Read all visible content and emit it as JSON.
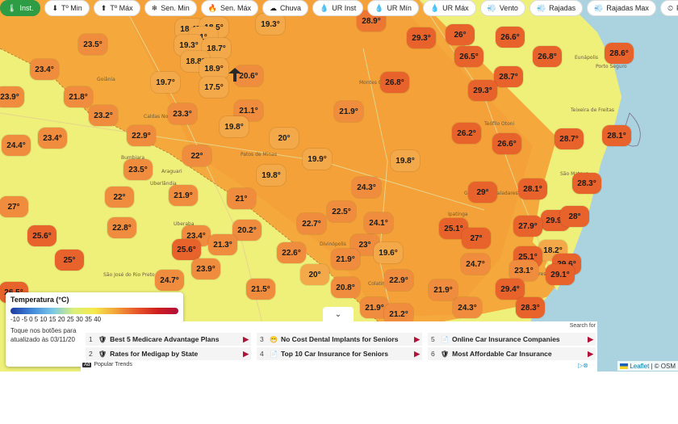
{
  "toolbar": [
    {
      "icon": "thermometer-icon",
      "glyph": "🌡",
      "label": "Inst.",
      "active": true
    },
    {
      "icon": "arrow-down-icon",
      "glyph": "⬇",
      "label": "Tº Min"
    },
    {
      "icon": "arrow-up-icon",
      "glyph": "⬆",
      "label": "Tº Máx"
    },
    {
      "icon": "snowflake-icon",
      "glyph": "❄",
      "label": "Sen. Min"
    },
    {
      "icon": "fire-icon",
      "glyph": "🔥",
      "label": "Sen. Máx"
    },
    {
      "icon": "cloud-rain-icon",
      "glyph": "☁",
      "label": "Chuva"
    },
    {
      "icon": "droplet-icon",
      "glyph": "💧",
      "label": "UR Inst"
    },
    {
      "icon": "droplet-icon",
      "glyph": "💧",
      "label": "UR Mín"
    },
    {
      "icon": "droplet-icon",
      "glyph": "💧",
      "label": "UR Máx"
    },
    {
      "icon": "wind-icon",
      "glyph": "💨",
      "label": "Vento"
    },
    {
      "icon": "wind-gust-icon",
      "glyph": "💨",
      "label": "Rajadas"
    },
    {
      "icon": "wind-gust-icon",
      "glyph": "💨",
      "label": "Rajadas Max"
    },
    {
      "icon": "gauge-icon",
      "glyph": "⏲",
      "label": "Pressão"
    }
  ],
  "markers": [
    {
      "t": "28.9°",
      "c": "orange"
    },
    {
      "t": "19.3°",
      "c": "mild"
    },
    {
      "t": "18.4°",
      "c": "mild"
    },
    {
      "t": "18.5°",
      "c": "mild"
    },
    {
      "t": "1°",
      "c": "mild"
    },
    {
      "t": "19.3°",
      "c": "mild"
    },
    {
      "t": "18.7°",
      "c": "mild"
    },
    {
      "t": "18.8°",
      "c": "mild"
    },
    {
      "t": "18.9°",
      "c": "mild"
    },
    {
      "t": "17.5°",
      "c": "mild"
    },
    {
      "t": "23.5°",
      "c": "warm"
    },
    {
      "t": "23.4°",
      "c": "warm"
    },
    {
      "t": "23.9°",
      "c": "warm"
    },
    {
      "t": "21.8°",
      "c": "warm"
    },
    {
      "t": "19.7°",
      "c": "mild"
    },
    {
      "t": "20.6°",
      "c": "warm"
    },
    {
      "t": "23.2°",
      "c": "warm"
    },
    {
      "t": "23.3°",
      "c": "warm"
    },
    {
      "t": "21.1°",
      "c": "warm"
    },
    {
      "t": "19.8°",
      "c": "mild"
    },
    {
      "t": "24.4°",
      "c": "warm"
    },
    {
      "t": "23.4°",
      "c": "warm"
    },
    {
      "t": "22.9°",
      "c": "warm"
    },
    {
      "t": "20°",
      "c": "mild"
    },
    {
      "t": "21.9°",
      "c": "warm"
    },
    {
      "t": "29.3°",
      "c": "hot"
    },
    {
      "t": "26°",
      "c": "hot"
    },
    {
      "t": "26.6°",
      "c": "hot"
    },
    {
      "t": "26.5°",
      "c": "hot"
    },
    {
      "t": "26.8°",
      "c": "hot"
    },
    {
      "t": "28.6°",
      "c": "hot"
    },
    {
      "t": "28.7°",
      "c": "hot"
    },
    {
      "t": "26.8°",
      "c": "hot"
    },
    {
      "t": "29.3°",
      "c": "hot"
    },
    {
      "t": "26.2°",
      "c": "hot"
    },
    {
      "t": "26.6°",
      "c": "hot"
    },
    {
      "t": "28.7°",
      "c": "hot"
    },
    {
      "t": "28.1°",
      "c": "hot"
    },
    {
      "t": "23.5°",
      "c": "warm"
    },
    {
      "t": "22°",
      "c": "warm"
    },
    {
      "t": "19.8°",
      "c": "mild"
    },
    {
      "t": "19.9°",
      "c": "mild"
    },
    {
      "t": "19.8°",
      "c": "mild"
    },
    {
      "t": "24.3°",
      "c": "warm"
    },
    {
      "t": "28.1°",
      "c": "hot"
    },
    {
      "t": "28.3°",
      "c": "hot"
    },
    {
      "t": "27°",
      "c": "warm"
    },
    {
      "t": "22°",
      "c": "warm"
    },
    {
      "t": "21.9°",
      "c": "warm"
    },
    {
      "t": "21°",
      "c": "warm"
    },
    {
      "t": "29°",
      "c": "hot"
    },
    {
      "t": "22.5°",
      "c": "warm"
    },
    {
      "t": "22.7°",
      "c": "warm"
    },
    {
      "t": "24.1°",
      "c": "warm"
    },
    {
      "t": "29.9°",
      "c": "hot"
    },
    {
      "t": "28°",
      "c": "hot"
    },
    {
      "t": "27.9°",
      "c": "hot"
    },
    {
      "t": "22.8°",
      "c": "warm"
    },
    {
      "t": "25.6°",
      "c": "hot"
    },
    {
      "t": "23.4°",
      "c": "warm"
    },
    {
      "t": "20.2°",
      "c": "warm"
    },
    {
      "t": "21.3°",
      "c": "warm"
    },
    {
      "t": "25.1°",
      "c": "hot"
    },
    {
      "t": "27°",
      "c": "hot"
    },
    {
      "t": "25°",
      "c": "hot"
    },
    {
      "t": "25.6°",
      "c": "hot"
    },
    {
      "t": "22.6°",
      "c": "warm"
    },
    {
      "t": "23°",
      "c": "warm"
    },
    {
      "t": "19.6°",
      "c": "mild"
    },
    {
      "t": "21.9°",
      "c": "warm"
    },
    {
      "t": "18.2°",
      "c": "mild"
    },
    {
      "t": "29.6°",
      "c": "hot"
    },
    {
      "t": "25.1°",
      "c": "hot"
    },
    {
      "t": "23.9°",
      "c": "warm"
    },
    {
      "t": "24.7°",
      "c": "warm"
    },
    {
      "t": "23.1°",
      "c": "warm"
    },
    {
      "t": "29.1°",
      "c": "hot"
    },
    {
      "t": "24.7°",
      "c": "warm"
    },
    {
      "t": "20°",
      "c": "mild"
    },
    {
      "t": "22.9°",
      "c": "warm"
    },
    {
      "t": "20.8°",
      "c": "warm"
    },
    {
      "t": "21.5°",
      "c": "warm"
    },
    {
      "t": "21.9°",
      "c": "warm"
    },
    {
      "t": "29.4°",
      "c": "hot"
    },
    {
      "t": "24.3°",
      "c": "warm"
    },
    {
      "t": "28.3°",
      "c": "hot"
    },
    {
      "t": "21.9°",
      "c": "warm"
    },
    {
      "t": "21.2°",
      "c": "warm"
    },
    {
      "t": "26.5°",
      "c": "hot"
    }
  ],
  "cities": [
    "Goiânia",
    "Montes Claros",
    "Teófilo Otoni",
    "Eunápolis",
    "Porto Seguro",
    "Teixeira de Freitas",
    "São Mateus",
    "Uberlândia",
    "Araguari",
    "Patos de Minas",
    "Uberaba",
    "São José do Rio Preto",
    "Divinópolis",
    "Governador Valadares",
    "Ipatinga",
    "Colatina",
    "Linhares",
    "Vitória",
    "Caldas Novas",
    "Bumbiara",
    "Barbacena"
  ],
  "legend": {
    "title": "Temperatura (°C)",
    "ticks": "-10 -5 0 5 10 15 20 25 30 35 40",
    "note1": "Toque nos botões para",
    "note2": "atualizado às 03/11/20"
  },
  "ads": {
    "search": "Search for",
    "items": [
      {
        "n": "1",
        "icon": "shield-icon",
        "label": "Best 5 Medicare Advantage Plans"
      },
      {
        "n": "2",
        "icon": "shield-icon",
        "label": "Rates for Medigap by State"
      },
      {
        "n": "3",
        "icon": "smile-icon",
        "label": "No Cost Dental Implants for Seniors"
      },
      {
        "n": "4",
        "icon": "document-icon",
        "label": "Top 10 Car Insurance for Seniors"
      },
      {
        "n": "5",
        "icon": "document-icon",
        "label": "Online Car Insurance Companies"
      },
      {
        "n": "6",
        "icon": "shield-icon",
        "label": "Most Affordable Car Insurance"
      }
    ],
    "badge": "Ad",
    "source": "Popular Trends"
  },
  "attribution": {
    "leaflet": "Leaflet",
    "osm": "| © OSM"
  }
}
